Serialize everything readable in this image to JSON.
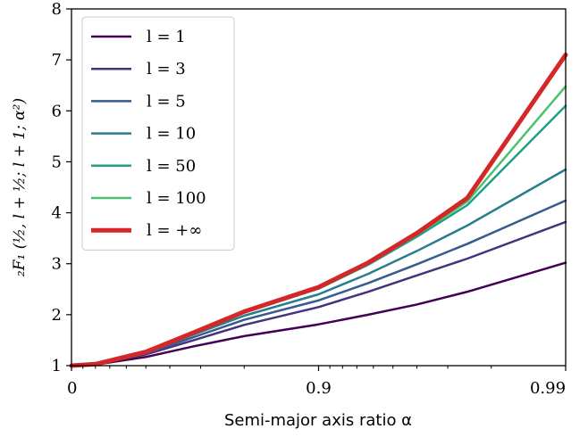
{
  "chart_data": {
    "type": "line",
    "xlabel": "Semi-major axis ratio α",
    "ylabel": "₂F₁ (½, l + ½; l + 1; α²)",
    "x_tick_labels": [
      "0",
      "0.9",
      "0.99"
    ],
    "x_tick_positions": [
      0,
      0.9,
      0.99
    ],
    "ylim": [
      1,
      8
    ],
    "y_ticks": [
      "1",
      "2",
      "3",
      "4",
      "5",
      "6",
      "7",
      "8"
    ],
    "x_scale": "log(1-x) style: uniform spacing between 0, 0.9, 0.99",
    "legend_placement": "upper-left",
    "grid": false,
    "x": [
      0,
      0.2,
      0.5,
      0.68,
      0.8,
      0.9,
      0.937,
      0.96,
      0.975,
      0.99
    ],
    "series": [
      {
        "name": "l = 1",
        "color": "#440154",
        "width": 2.5,
        "values": [
          1.0,
          1.02,
          1.17,
          1.38,
          1.58,
          1.81,
          2.0,
          2.2,
          2.45,
          3.02
        ]
      },
      {
        "name": "l = 3",
        "color": "#46337e",
        "width": 2.5,
        "values": [
          1.0,
          1.03,
          1.22,
          1.5,
          1.8,
          2.15,
          2.45,
          2.77,
          3.1,
          3.82
        ]
      },
      {
        "name": "l = 5",
        "color": "#365c8d",
        "width": 2.5,
        "values": [
          1.0,
          1.03,
          1.24,
          1.56,
          1.9,
          2.28,
          2.62,
          2.99,
          3.39,
          4.24
        ]
      },
      {
        "name": "l = 10",
        "color": "#277f8e",
        "width": 2.5,
        "values": [
          1.0,
          1.03,
          1.26,
          1.61,
          1.98,
          2.4,
          2.8,
          3.25,
          3.75,
          4.85
        ]
      },
      {
        "name": "l = 50",
        "color": "#1fa187",
        "width": 2.5,
        "values": [
          1.0,
          1.03,
          1.27,
          1.64,
          2.04,
          2.51,
          2.98,
          3.53,
          4.15,
          6.1
        ]
      },
      {
        "name": "l = 100",
        "color": "#4ac16d",
        "width": 2.5,
        "values": [
          1.0,
          1.03,
          1.27,
          1.64,
          2.05,
          2.52,
          3.0,
          3.57,
          4.22,
          6.48
        ]
      },
      {
        "name": "l = +∞",
        "color": "#d62728",
        "width": 5,
        "values": [
          1.0,
          1.03,
          1.27,
          1.65,
          2.06,
          2.54,
          3.02,
          3.6,
          4.29,
          7.1
        ]
      }
    ]
  }
}
